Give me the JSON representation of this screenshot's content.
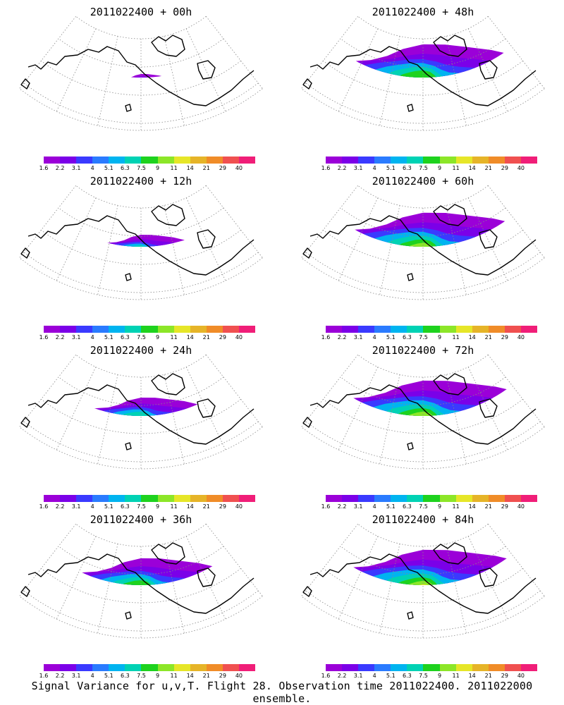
{
  "panels": [
    {
      "title": "2011022400 + 00h",
      "spread": 0.25,
      "intensity": 0.35,
      "lead": "00h"
    },
    {
      "title": "2011022400 + 48h",
      "spread": 0.95,
      "intensity": 0.6,
      "lead": "48h"
    },
    {
      "title": "2011022400 + 12h",
      "spread": 0.45,
      "intensity": 0.45,
      "lead": "12h"
    },
    {
      "title": "2011022400 + 60h",
      "spread": 0.97,
      "intensity": 0.65,
      "lead": "60h"
    },
    {
      "title": "2011022400 + 24h",
      "spread": 0.6,
      "intensity": 0.5,
      "lead": "24h"
    },
    {
      "title": "2011022400 + 72h",
      "spread": 1.0,
      "intensity": 0.72,
      "lead": "72h"
    },
    {
      "title": "2011022400 + 36h",
      "spread": 0.8,
      "intensity": 0.55,
      "lead": "36h"
    },
    {
      "title": "2011022400 + 84h",
      "spread": 1.0,
      "intensity": 0.8,
      "lead": "84h"
    }
  ],
  "colorbar": {
    "labels": [
      "1.6",
      "2.2",
      "3.1",
      "4",
      "5.1",
      "6.3",
      "7.5",
      "9",
      "11",
      "14",
      "21",
      "29",
      "40"
    ],
    "colors": [
      "#9b00d8",
      "#7b00e8",
      "#3a3aff",
      "#2a7bff",
      "#00b4f0",
      "#00d2b4",
      "#1ed21e",
      "#8ce628",
      "#e6e628",
      "#e6b428",
      "#f08c28",
      "#f05050",
      "#f01e78"
    ]
  },
  "caption": "Signal Variance for u,v,T. Flight 28. Observation time 2011022400. 2011022000 ensemble."
}
